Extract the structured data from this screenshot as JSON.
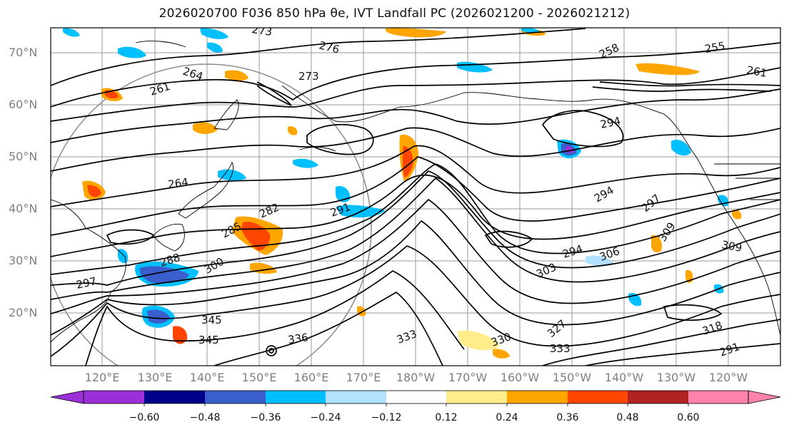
{
  "title": "2026020700 F036 850 hPa θe, IVT Landfall PC (2026021200 - 2026021212)",
  "map": {
    "lat_ticks": [
      "70°N",
      "60°N",
      "50°N",
      "40°N",
      "30°N",
      "20°N"
    ],
    "lon_ticks": [
      "120°E",
      "130°E",
      "140°E",
      "150°E",
      "160°E",
      "170°E",
      "180°W",
      "170°W",
      "160°W",
      "150°W",
      "140°W",
      "130°W",
      "120°W"
    ],
    "contour_labels": [
      "273",
      "276",
      "264",
      "261",
      "273",
      "258",
      "255",
      "261",
      "264",
      "282",
      "285",
      "291",
      "288",
      "300",
      "303",
      "294",
      "297",
      "309",
      "294",
      "306",
      "309",
      "336",
      "333",
      "330",
      "327",
      "318",
      "333",
      "345",
      "345",
      "297",
      "294",
      "291"
    ]
  },
  "colorbar": {
    "ticks": [
      "−0.60",
      "−0.48",
      "−0.36",
      "−0.24",
      "−0.12",
      "0.12",
      "0.24",
      "0.36",
      "0.48",
      "0.60"
    ],
    "colors": [
      "#9b30d9",
      "#00008b",
      "#3a5fcd",
      "#00bfff",
      "#b0e2ff",
      "#ffffff",
      "#ffec8b",
      "#ffa500",
      "#ff4500",
      "#b22222",
      "#ff82ab"
    ]
  }
}
